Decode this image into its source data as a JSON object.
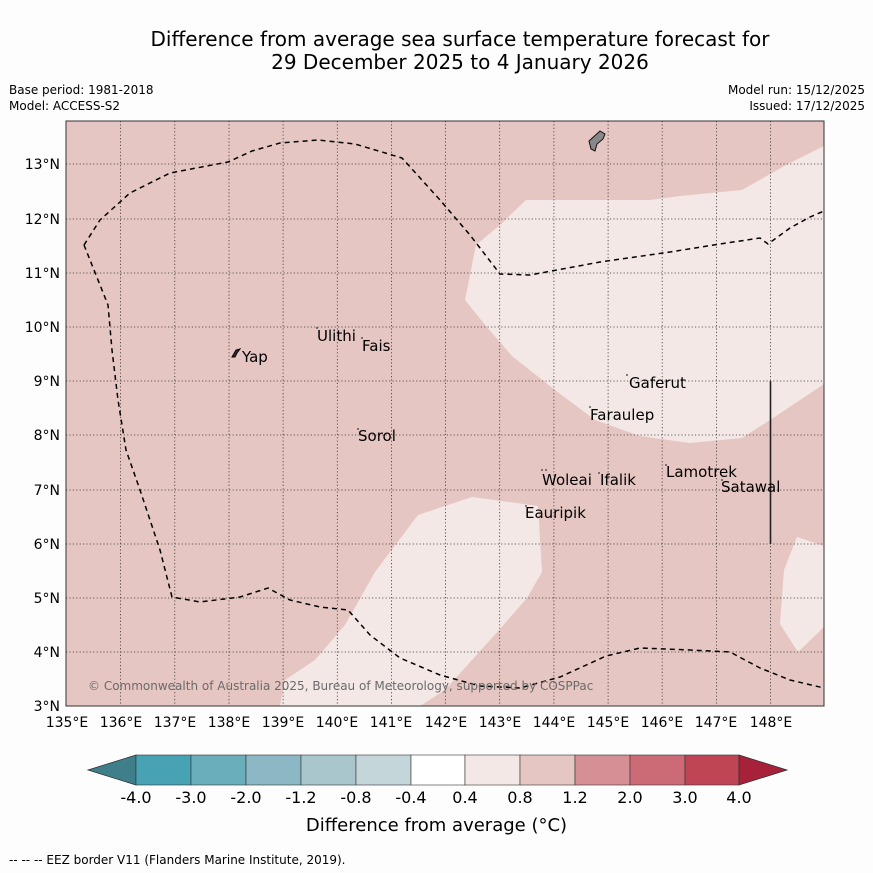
{
  "title_line1": "Difference from average sea surface temperature forecast for",
  "title_line2": "29 December 2025 to 4 January 2026",
  "meta": {
    "base_period": "Base period: 1981-2018",
    "model": "Model: ACCESS-S2",
    "model_run": "Model run: 15/12/2025",
    "issued": "Issued: 17/12/2025"
  },
  "map": {
    "lon_ticks": [
      "135°E",
      "136°E",
      "137°E",
      "138°E",
      "139°E",
      "140°E",
      "141°E",
      "142°E",
      "143°E",
      "144°E",
      "145°E",
      "146°E",
      "147°E",
      "148°E"
    ],
    "lat_ticks": [
      "3°N",
      "4°N",
      "5°N",
      "6°N",
      "7°N",
      "8°N",
      "9°N",
      "10°N",
      "11°N",
      "12°N",
      "13°N"
    ],
    "places": [
      {
        "name": "Yap"
      },
      {
        "name": "Ulithi"
      },
      {
        "name": "Fais"
      },
      {
        "name": "Sorol"
      },
      {
        "name": "Gaferut"
      },
      {
        "name": "Faraulep"
      },
      {
        "name": "Woleai"
      },
      {
        "name": "Ifalik"
      },
      {
        "name": "Lamotrek"
      },
      {
        "name": "Satawal"
      },
      {
        "name": "Eauripik"
      }
    ],
    "copyright": "© Commonwealth of Australia 2025, Bureau of Meteorology, supported by COSPPac",
    "colors": {
      "band_0_4_to_0_8": "#f4e8e7",
      "band_0_8_to_1_2": "#e6c6c2",
      "land": "#888888"
    }
  },
  "colorbar": {
    "ticks": [
      "-4.0",
      "-3.0",
      "-2.0",
      "-1.2",
      "-0.8",
      "-0.4",
      "0.4",
      "0.8",
      "1.2",
      "2.0",
      "3.0",
      "4.0"
    ],
    "colors": [
      "#3e7f8b",
      "#47a2b3",
      "#6aaebc",
      "#8bb8c4",
      "#a9c6cd",
      "#c5d6da",
      "#ffffff",
      "#f4e8e7",
      "#e6c6c2",
      "#d78f96",
      "#cc6b76",
      "#bf4554",
      "#a8213b"
    ],
    "title": "Difference from average (°C)"
  },
  "footer": "--  --  -- EEZ border V11 (Flanders Marine Institute, 2019)."
}
